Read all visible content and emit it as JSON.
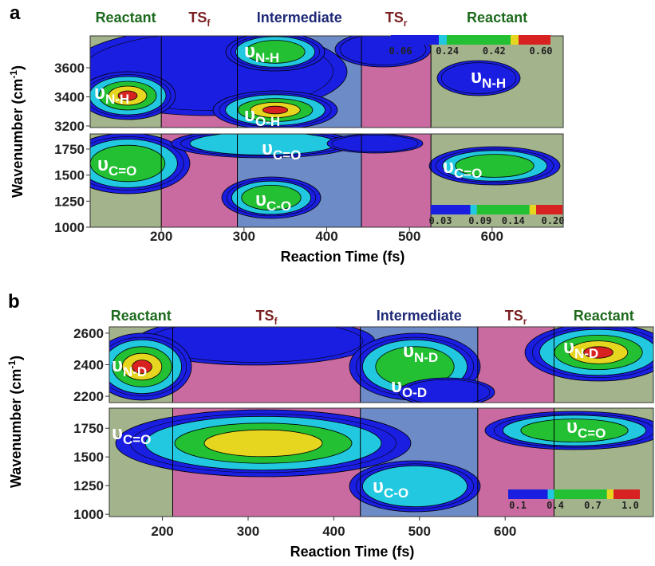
{
  "chart_data": [
    {
      "type": "contour",
      "panel_label": "a",
      "x_label": "Reaction Time (fs)",
      "y_label": {
        "text": "Wavenumber (cm",
        "sup": "-1",
        "close": ")"
      },
      "xlim": [
        114,
        686
      ],
      "xticks": [
        200,
        300,
        400,
        500,
        600
      ],
      "regions": [
        {
          "text": "Reactant",
          "sub": "",
          "range": [
            114,
            200
          ],
          "color": "#a3b38b",
          "text_color": "#1d6a1d"
        },
        {
          "text": "TS",
          "sub": "f",
          "range": [
            200,
            292
          ],
          "color": "#c96ba0",
          "text_color": "#7a1f22"
        },
        {
          "text": "Intermediate",
          "sub": "",
          "range": [
            292,
            442
          ],
          "color": "#6d8bc6",
          "text_color": "#1f2a78"
        },
        {
          "text": "TS",
          "sub": "r",
          "range": [
            442,
            526
          ],
          "color": "#c96ba0",
          "text_color": "#7a1f22"
        },
        {
          "text": "Reactant",
          "sub": "",
          "range": [
            526,
            686
          ],
          "color": "#a3b38b",
          "text_color": "#1d6a1d"
        }
      ],
      "subplots": [
        {
          "ylim": [
            3189,
            3819
          ],
          "yticks": [
            3200,
            3400,
            3600
          ],
          "annotations": [
            {
              "symbol": "υ",
              "sub": "N-H"
            },
            {
              "symbol": "υ",
              "sub": "N-H"
            },
            {
              "symbol": "υ",
              "sub": "O-H"
            },
            {
              "symbol": "υ",
              "sub": "N-H"
            }
          ],
          "colorbar": {
            "ticks": [
              0.06,
              0.24,
              0.42,
              {
                "value": 0.6,
                "label": "0.60"
              }
            ],
            "colors": [
              "#1a1ee0",
              "#22c8e0",
              "#22c032",
              "#e6d620",
              "#d82222"
            ]
          }
        },
        {
          "ylim": [
            1000,
            1895
          ],
          "yticks": [
            1000,
            1250,
            1500,
            1750
          ],
          "annotations": [
            {
              "symbol": "υ",
              "sub": "C=O"
            },
            {
              "symbol": "υ",
              "sub": "C=O"
            },
            {
              "symbol": "υ",
              "sub": "C-O"
            },
            {
              "symbol": "υ",
              "sub": "C=O"
            }
          ],
          "colorbar": {
            "ticks": [
              0.03,
              0.09,
              0.14,
              {
                "value": 0.2,
                "label": "0.20"
              }
            ],
            "colors": [
              "#1a1ee0",
              "#22c8e0",
              "#22c032",
              "#e6d620",
              "#d82222"
            ]
          }
        }
      ]
    },
    {
      "type": "contour",
      "panel_label": "b",
      "x_label": "Reaction Time (fs)",
      "y_label": {
        "text": "Wavenumber (cm",
        "sup": "-1",
        "close": ")"
      },
      "xlim": [
        138,
        773
      ],
      "xticks": [
        200,
        300,
        400,
        500,
        600
      ],
      "regions": [
        {
          "text": "Reactant",
          "sub": "",
          "range": [
            138,
            212
          ],
          "color": "#a3b38b",
          "text_color": "#1d6a1d"
        },
        {
          "text": "TS",
          "sub": "f",
          "range": [
            212,
            431
          ],
          "color": "#c96ba0",
          "text_color": "#7a1f22"
        },
        {
          "text": "Intermediate",
          "sub": "",
          "range": [
            431,
            568
          ],
          "color": "#6d8bc6",
          "text_color": "#1f2a78"
        },
        {
          "text": "TS",
          "sub": "r",
          "range": [
            568,
            657
          ],
          "color": "#c96ba0",
          "text_color": "#7a1f22"
        },
        {
          "text": "Reactant",
          "sub": "",
          "range": [
            657,
            773
          ],
          "color": "#a3b38b",
          "text_color": "#1d6a1d"
        }
      ],
      "subplots": [
        {
          "ylim": [
            2160,
            2640
          ],
          "yticks": [
            2200,
            2400,
            2600
          ],
          "annotations": [
            {
              "symbol": "υ",
              "sub": "N-D"
            },
            {
              "symbol": "υ",
              "sub": "N-D"
            },
            {
              "symbol": "υ",
              "sub": "O-D"
            },
            {
              "symbol": "υ",
              "sub": "N-D"
            }
          ]
        },
        {
          "ylim": [
            980,
            1925
          ],
          "yticks": [
            1000,
            1250,
            1500,
            1750
          ],
          "annotations": [
            {
              "symbol": "υ",
              "sub": "C=O"
            },
            {
              "symbol": "υ",
              "sub": "C-O"
            },
            {
              "symbol": "υ",
              "sub": "C=O"
            }
          ],
          "colorbar": {
            "ticks": [
              0.1,
              0.4,
              0.7,
              {
                "value": 1,
                "label": "1.0"
              }
            ],
            "colors": [
              "#1a1ee0",
              "#22c8e0",
              "#22c032",
              "#e6d620",
              "#d82222"
            ]
          }
        }
      ]
    }
  ]
}
